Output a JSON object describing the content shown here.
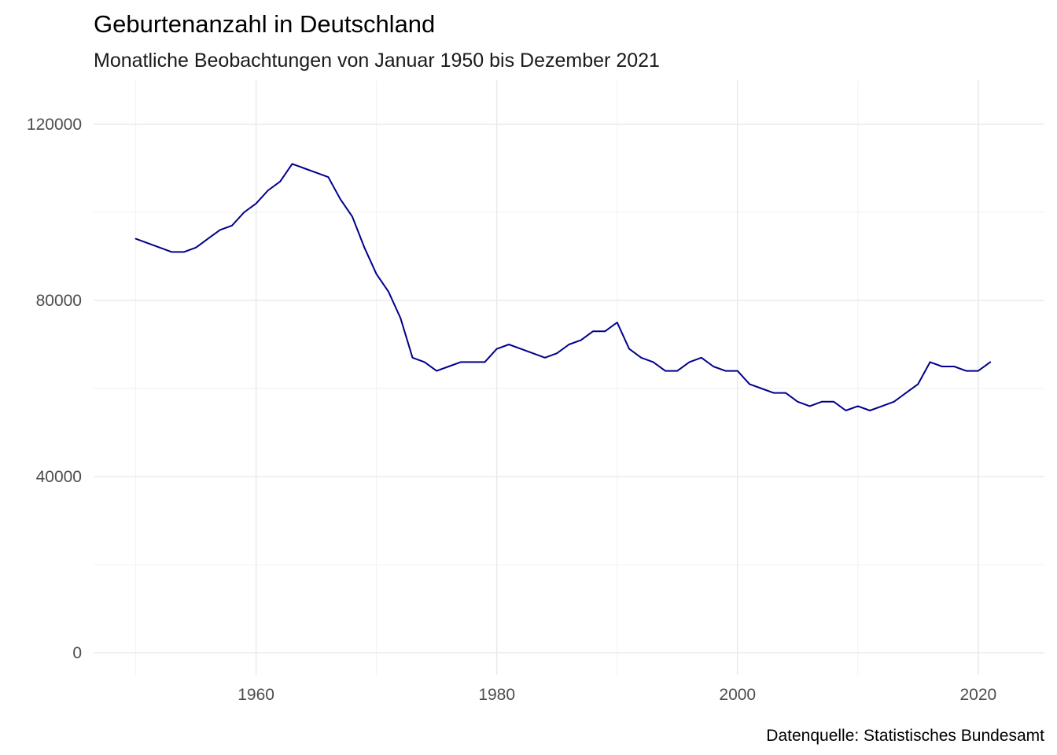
{
  "chart_data": {
    "type": "line",
    "title": "Geburtenanzahl in Deutschland",
    "subtitle": "Monatliche Beobachtungen von Januar 1950 bis Dezember 2021",
    "caption": "Datenquelle: Statistisches Bundesamt",
    "xlabel": "",
    "ylabel": "",
    "xlim": [
      1946.5,
      2025.5
    ],
    "ylim": [
      -5000,
      130000
    ],
    "x_ticks": [
      1960,
      1980,
      2000,
      2020
    ],
    "x_tick_labels": [
      "1960",
      "1980",
      "2000",
      "2020"
    ],
    "y_ticks": [
      0,
      40000,
      80000,
      120000
    ],
    "y_tick_labels": [
      "0",
      "40000",
      "80000",
      "120000"
    ],
    "grid": true,
    "legend": "none",
    "line_color": "#00008b",
    "series": [
      {
        "x": [
          1950,
          1951,
          1952,
          1953,
          1954,
          1955,
          1956,
          1957,
          1958,
          1959,
          1960,
          1961,
          1962,
          1963,
          1964,
          1965,
          1966,
          1967,
          1968,
          1969,
          1970,
          1971,
          1972,
          1973,
          1974,
          1975,
          1976,
          1977,
          1978,
          1979,
          1980,
          1981,
          1982,
          1983,
          1984,
          1985,
          1986,
          1987,
          1988,
          1989,
          1990,
          1991,
          1992,
          1993,
          1994,
          1995,
          1996,
          1997,
          1998,
          1999,
          2000,
          2001,
          2002,
          2003,
          2004,
          2005,
          2006,
          2007,
          2008,
          2009,
          2010,
          2011,
          2012,
          2013,
          2014,
          2015,
          2016,
          2017,
          2018,
          2019,
          2020,
          2021
        ],
        "values": [
          94000,
          93000,
          92000,
          91000,
          91000,
          92000,
          94000,
          96000,
          97000,
          100000,
          102000,
          105000,
          107000,
          111000,
          110000,
          109000,
          108000,
          103000,
          99000,
          92000,
          86000,
          82000,
          76000,
          67000,
          66000,
          64000,
          65000,
          66000,
          66000,
          66000,
          69000,
          70000,
          69000,
          68000,
          67000,
          68000,
          70000,
          71000,
          73000,
          73000,
          75000,
          69000,
          67000,
          66000,
          64000,
          64000,
          66000,
          67000,
          65000,
          64000,
          64000,
          61000,
          60000,
          59000,
          59000,
          57000,
          56000,
          57000,
          57000,
          55000,
          56000,
          55000,
          56000,
          57000,
          59000,
          61000,
          66000,
          65000,
          65000,
          64000,
          64000,
          66000
        ]
      }
    ]
  }
}
